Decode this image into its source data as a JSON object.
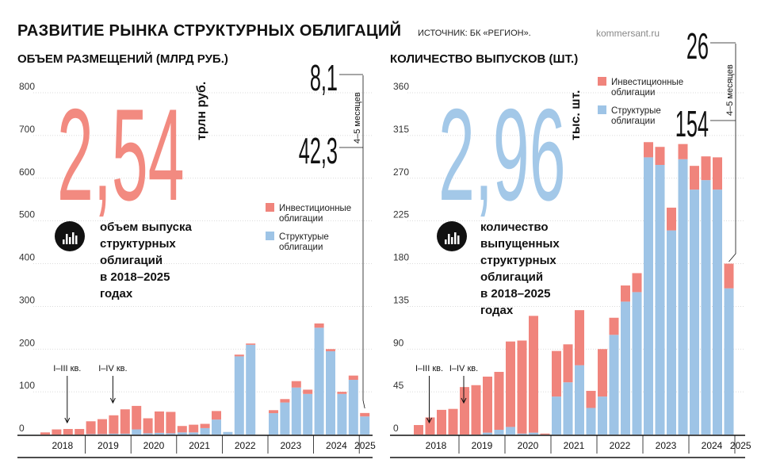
{
  "header": {
    "title": "РАЗВИТИЕ РЫНКА СТРУКТУРНЫХ ОБЛИГАЦИЙ",
    "source": "ИСТОЧНИК: БК «РЕГИОН».",
    "brand": "kommersant.ru"
  },
  "colors": {
    "investment": "#f0847c",
    "structural": "#9ec4e6",
    "big_left": "#f28a80",
    "big_right": "#a3c8e8"
  },
  "chart_data": [
    {
      "type": "bar",
      "title": "ОБЪЕМ РАЗМЕЩЕНИЙ (МЛРД РУБ.)",
      "big_number": "2,54",
      "big_unit": "трлн руб.",
      "icon": "bar-chart-circle-icon",
      "description": "объем выпуска структурных облигаций в 2018–2025 годах",
      "description_lines": [
        "объем выпуска",
        "структурных",
        "облигаций",
        "в 2018–2025",
        "годах"
      ],
      "legend": [
        "Инвестиционные облигации",
        "Структурые облигации"
      ],
      "legend_lines": [
        [
          "Инвестиционные",
          "облигации"
        ],
        [
          "Структурые",
          "облигации"
        ]
      ],
      "ylim": [
        0,
        800
      ],
      "yticks": [
        "0",
        "100",
        "200",
        "300",
        "400",
        "500",
        "600",
        "700",
        "800"
      ],
      "year_labels": [
        "2018",
        "2019",
        "2020",
        "2021",
        "2022",
        "2023",
        "2024",
        "2025"
      ],
      "year_quarters": [
        4,
        4,
        4,
        4,
        4,
        4,
        4,
        1
      ],
      "annotations": [
        {
          "text": "I–III кв.",
          "quarter": 2
        },
        {
          "text": "I–IV кв.",
          "quarter": 6
        }
      ],
      "last_values": {
        "structural": "42,3",
        "investment": "8,1",
        "period": "4–5 месяцев"
      },
      "series": [
        {
          "name": "Структурые облигации",
          "values": [
            0,
            0,
            0,
            0,
            1,
            1,
            2,
            2,
            12,
            3,
            4,
            3,
            5,
            5,
            15,
            35,
            6,
            183,
            210,
            0,
            50,
            75,
            110,
            95,
            250,
            195,
            95,
            128,
            42.3
          ]
        },
        {
          "name": "Инвестиционные облигации",
          "values": [
            5,
            12,
            13,
            13,
            30,
            35,
            43,
            57,
            55,
            35,
            50,
            50,
            15,
            18,
            10,
            20,
            0,
            4,
            3,
            0,
            7,
            8,
            15,
            10,
            10,
            5,
            5,
            10,
            8.1
          ]
        }
      ]
    },
    {
      "type": "bar",
      "title": "КОЛИЧЕСТВО ВЫПУСКОВ (ШТ.)",
      "big_number": "2,96",
      "big_unit": "тыс. шт.",
      "icon": "bar-chart-circle-icon",
      "description": "количество выпущенных структурных облигаций в 2018–2025 годах",
      "description_lines": [
        "количество",
        "выпущенных",
        "структурных",
        "облигаций",
        "в 2018–2025",
        "годах"
      ],
      "legend": [
        "Инвестиционные облигации",
        "Структурые облигации"
      ],
      "legend_lines": [
        [
          "Инвестиционные",
          "облигации"
        ],
        [
          "Структурые",
          "облигации"
        ]
      ],
      "ylim": [
        0,
        360
      ],
      "yticks": [
        "0",
        "45",
        "90",
        "135",
        "180",
        "225",
        "270",
        "315",
        "360"
      ],
      "year_labels": [
        "2018",
        "2019",
        "2020",
        "2021",
        "2022",
        "2023",
        "2024",
        "2025"
      ],
      "year_quarters": [
        4,
        4,
        4,
        4,
        4,
        4,
        4,
        1
      ],
      "annotations": [
        {
          "text": "I–III кв.",
          "quarter": 1
        },
        {
          "text": "I–IV кв.",
          "quarter": 4
        }
      ],
      "last_values": {
        "structural": "154",
        "investment": "26",
        "period": "4–5 месяцев"
      },
      "series": [
        {
          "name": "Структурые облигации",
          "values": [
            0,
            0,
            0,
            0,
            0,
            0,
            2,
            5,
            8,
            1,
            2,
            0,
            40,
            55,
            73,
            28,
            40,
            105,
            140,
            150,
            292,
            284,
            215,
            290,
            258,
            268,
            258,
            154
          ]
        },
        {
          "name": "Инвестиционные облигации",
          "values": [
            10,
            18,
            26,
            27,
            50,
            52,
            59,
            61,
            90,
            98,
            123,
            1,
            48,
            40,
            58,
            18,
            50,
            18,
            17,
            20,
            16,
            19,
            24,
            16,
            25,
            25,
            34,
            26
          ]
        }
      ]
    }
  ]
}
